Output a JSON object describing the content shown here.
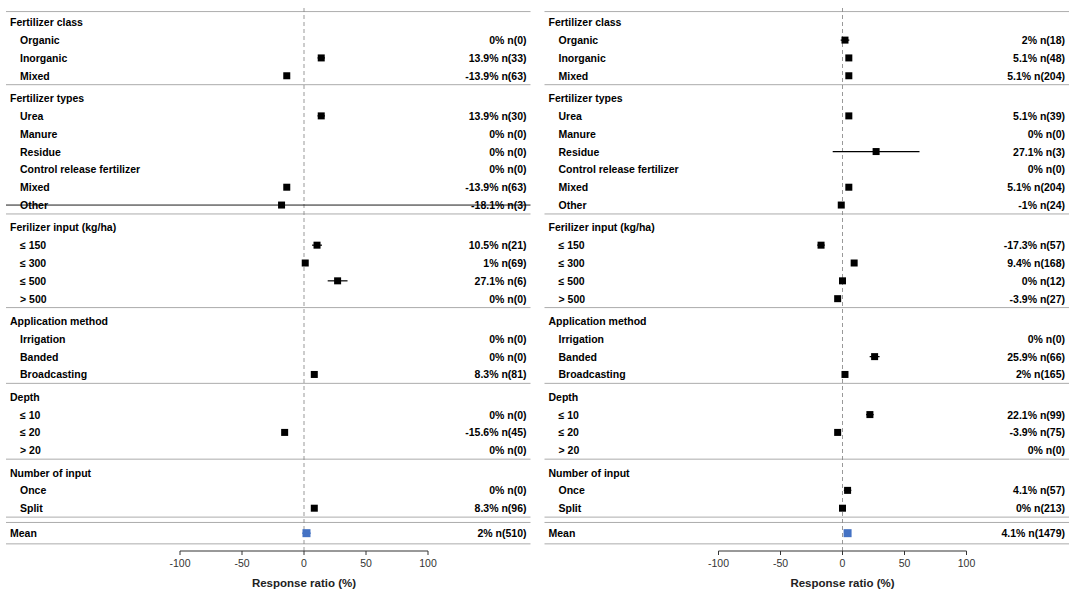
{
  "chart_data": [
    {
      "type": "forest",
      "x_label": "Response ratio (%)",
      "xlim": [
        -100,
        100
      ],
      "xticks": [
        -100,
        -50,
        0,
        50,
        100
      ],
      "color": "#000000",
      "groups": [
        {
          "header": "Fertilizer class",
          "rows": [
            {
              "label": "Organic",
              "value": null,
              "error_low": null,
              "error_high": null,
              "value_label": "0% n(0)"
            },
            {
              "label": "Inorganic",
              "value": 13.9,
              "error_low": 3.0,
              "error_high": 3.0,
              "value_label": "13.9% n(33)"
            },
            {
              "label": "Mixed",
              "value": -13.9,
              "error_low": 2.0,
              "error_high": 2.0,
              "value_label": "-13.9% n(63)"
            }
          ]
        },
        {
          "header": "Fertilizer types",
          "rows": [
            {
              "label": "Urea",
              "value": 13.9,
              "error_low": 3.0,
              "error_high": 3.0,
              "value_label": "13.9% n(30)"
            },
            {
              "label": "Manure",
              "value": null,
              "error_low": null,
              "error_high": null,
              "value_label": "0% n(0)"
            },
            {
              "label": "Residue",
              "value": null,
              "error_low": null,
              "error_high": null,
              "value_label": "0% n(0)"
            },
            {
              "label": "Control release fertilizer",
              "value": null,
              "error_low": null,
              "error_high": null,
              "value_label": "0% n(0)"
            },
            {
              "label": "Mixed",
              "value": -13.9,
              "error_low": 2.0,
              "error_high": 2.0,
              "value_label": "-13.9% n(63)"
            },
            {
              "label": "Other",
              "value": -18.1,
              "error_low": 0.5,
              "error_high": 0.5,
              "value_label": "-18.1% n(3)",
              "line_style": "strikethrough"
            }
          ]
        },
        {
          "header": "Ferilizer input (kg/ha)",
          "rows": [
            {
              "label": "≤ 150",
              "value": 10.5,
              "error_low": 4.0,
              "error_high": 4.0,
              "value_label": "10.5% n(21)"
            },
            {
              "label": "≤ 300",
              "value": 1.0,
              "error_low": 2.0,
              "error_high": 2.0,
              "value_label": "1% n(69)"
            },
            {
              "label": "≤ 500",
              "value": 27.1,
              "error_low": 8.0,
              "error_high": 8.0,
              "value_label": "27.1% n(6)"
            },
            {
              "label": "> 500",
              "value": null,
              "error_low": null,
              "error_high": null,
              "value_label": "0% n(0)"
            }
          ]
        },
        {
          "header": "Application method",
          "rows": [
            {
              "label": "Irrigation",
              "value": null,
              "error_low": null,
              "error_high": null,
              "value_label": "0% n(0)"
            },
            {
              "label": "Banded",
              "value": null,
              "error_low": null,
              "error_high": null,
              "value_label": "0% n(0)"
            },
            {
              "label": "Broadcasting",
              "value": 8.3,
              "error_low": 1.5,
              "error_high": 1.5,
              "value_label": "8.3% n(81)"
            }
          ]
        },
        {
          "header": "Depth",
          "rows": [
            {
              "label": "≤ 10",
              "value": null,
              "error_low": null,
              "error_high": null,
              "value_label": "0% n(0)"
            },
            {
              "label": "≤ 20",
              "value": -15.6,
              "error_low": 2.0,
              "error_high": 2.0,
              "value_label": "-15.6% n(45)"
            },
            {
              "label": "> 20",
              "value": null,
              "error_low": null,
              "error_high": null,
              "value_label": "0% n(0)"
            }
          ]
        },
        {
          "header": "Number of input",
          "rows": [
            {
              "label": "Once",
              "value": null,
              "error_low": null,
              "error_high": null,
              "value_label": "0% n(0)"
            },
            {
              "label": "Split",
              "value": 8.3,
              "error_low": 1.5,
              "error_high": 1.5,
              "value_label": "8.3% n(96)"
            }
          ]
        }
      ],
      "mean": {
        "label": "Mean",
        "value": 2.0,
        "error_low": 3.5,
        "error_high": 3.5,
        "value_label": "2% n(510)",
        "color": "#4472C4"
      }
    },
    {
      "type": "forest",
      "x_label": "Response ratio (%)",
      "xlim": [
        -100,
        100
      ],
      "xticks": [
        -100,
        -50,
        0,
        50,
        100
      ],
      "color": "#000000",
      "groups": [
        {
          "header": "Fertilizer class",
          "rows": [
            {
              "label": "Organic",
              "value": 2.0,
              "error_low": 3.5,
              "error_high": 3.5,
              "value_label": "2% n(18)"
            },
            {
              "label": "Inorganic",
              "value": 5.1,
              "error_low": 1.5,
              "error_high": 1.5,
              "value_label": "5.1% n(48)"
            },
            {
              "label": "Mixed",
              "value": 5.1,
              "error_low": 1.0,
              "error_high": 1.0,
              "value_label": "5.1% n(204)"
            }
          ]
        },
        {
          "header": "Fertilizer types",
          "rows": [
            {
              "label": "Urea",
              "value": 5.1,
              "error_low": 1.5,
              "error_high": 1.5,
              "value_label": "5.1% n(39)"
            },
            {
              "label": "Manure",
              "value": null,
              "error_low": null,
              "error_high": null,
              "value_label": "0% n(0)"
            },
            {
              "label": "Residue",
              "value": 27.1,
              "error_low": 35.0,
              "error_high": 35.0,
              "value_label": "27.1% n(3)"
            },
            {
              "label": "Control release fertilizer",
              "value": null,
              "error_low": null,
              "error_high": null,
              "value_label": "0% n(0)"
            },
            {
              "label": "Mixed",
              "value": 5.1,
              "error_low": 1.0,
              "error_high": 1.0,
              "value_label": "5.1% n(204)"
            },
            {
              "label": "Other",
              "value": -1.0,
              "error_low": 2.0,
              "error_high": 2.0,
              "value_label": "-1% n(24)"
            }
          ]
        },
        {
          "header": "Ferilizer input (kg/ha)",
          "rows": [
            {
              "label": "≤ 150",
              "value": -17.3,
              "error_low": 3.0,
              "error_high": 3.0,
              "value_label": "-17.3% n(57)"
            },
            {
              "label": "≤ 300",
              "value": 9.4,
              "error_low": 1.5,
              "error_high": 1.5,
              "value_label": "9.4% n(168)"
            },
            {
              "label": "≤ 500",
              "value": 0.0,
              "error_low": 2.5,
              "error_high": 2.5,
              "value_label": "0% n(12)"
            },
            {
              "label": "> 500",
              "value": -3.9,
              "error_low": 2.0,
              "error_high": 2.0,
              "value_label": "-3.9% n(27)"
            }
          ]
        },
        {
          "header": "Application method",
          "rows": [
            {
              "label": "Irrigation",
              "value": null,
              "error_low": null,
              "error_high": null,
              "value_label": "0% n(0)"
            },
            {
              "label": "Banded",
              "value": 25.9,
              "error_low": 4.0,
              "error_high": 4.0,
              "value_label": "25.9% n(66)"
            },
            {
              "label": "Broadcasting",
              "value": 2.0,
              "error_low": 1.0,
              "error_high": 1.0,
              "value_label": "2% n(165)"
            }
          ]
        },
        {
          "header": "Depth",
          "rows": [
            {
              "label": "≤ 10",
              "value": 22.1,
              "error_low": 3.0,
              "error_high": 3.0,
              "value_label": "22.1% n(99)"
            },
            {
              "label": "≤ 20",
              "value": -3.9,
              "error_low": 1.5,
              "error_high": 1.5,
              "value_label": "-3.9% n(75)"
            },
            {
              "label": "> 20",
              "value": null,
              "error_low": null,
              "error_high": null,
              "value_label": "0% n(0)"
            }
          ]
        },
        {
          "header": "Number of input",
          "rows": [
            {
              "label": "Once",
              "value": 4.1,
              "error_low": 3.0,
              "error_high": 3.0,
              "value_label": "4.1% n(57)"
            },
            {
              "label": "Split",
              "value": 0.0,
              "error_low": 0.8,
              "error_high": 0.8,
              "value_label": "0% n(213)"
            }
          ]
        }
      ],
      "mean": {
        "label": "Mean",
        "value": 4.1,
        "error_low": 2.5,
        "error_high": 2.5,
        "value_label": "4.1% n(1479)",
        "color": "#4472C4"
      }
    }
  ]
}
